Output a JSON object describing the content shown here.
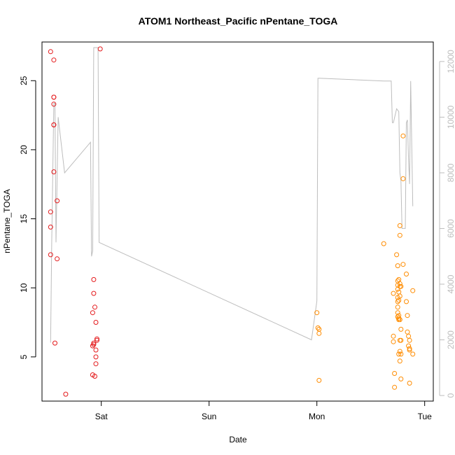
{
  "chart_data": {
    "type": "scatter",
    "title": "ATOM1 Northeast_Pacific nPentane_TOGA",
    "xlabel": "Date",
    "ylabel": "nPentane_TOGA",
    "x_ticks": [
      {
        "label": "Sat",
        "day": 1.0
      },
      {
        "label": "Sun",
        "day": 2.0
      },
      {
        "label": "Mon",
        "day": 3.0
      },
      {
        "label": "Tue",
        "day": 4.0
      }
    ],
    "xlim_days": [
      0.45,
      4.08
    ],
    "ylim": [
      1.8,
      27.8
    ],
    "y_ticks": [
      5,
      10,
      15,
      20,
      25
    ],
    "y2_ticks": [
      0,
      2000,
      4000,
      6000,
      8000,
      10000,
      12000
    ],
    "y2lim": [
      -200,
      12700
    ],
    "grid": false,
    "colors": {
      "series1": "#e41a1c",
      "series2": "#ff8c00",
      "line": "#bdbdbd",
      "axis": "#000000",
      "axis_right": "#bdbdbd"
    },
    "series": [
      {
        "color": "#e41a1c",
        "points": [
          [
            0.53,
            27.1
          ],
          [
            0.53,
            15.5
          ],
          [
            0.53,
            14.4
          ],
          [
            0.53,
            12.4
          ],
          [
            0.56,
            26.5
          ],
          [
            0.56,
            23.8
          ],
          [
            0.56,
            23.8
          ],
          [
            0.56,
            23.3
          ],
          [
            0.56,
            21.8
          ],
          [
            0.56,
            21.8
          ],
          [
            0.56,
            18.4
          ],
          [
            0.57,
            6.0
          ],
          [
            0.59,
            16.3
          ],
          [
            0.59,
            12.1
          ],
          [
            0.67,
            2.3
          ],
          [
            0.92,
            8.2
          ],
          [
            0.92,
            5.8
          ],
          [
            0.92,
            3.7
          ],
          [
            0.93,
            10.6
          ],
          [
            0.93,
            9.6
          ],
          [
            0.93,
            5.9
          ],
          [
            0.93,
            6.0
          ],
          [
            0.94,
            8.6
          ],
          [
            0.94,
            3.6
          ],
          [
            0.95,
            7.5
          ],
          [
            0.95,
            5.5
          ],
          [
            0.95,
            5.0
          ],
          [
            0.95,
            4.5
          ],
          [
            0.96,
            6.3
          ],
          [
            0.96,
            6.2
          ],
          [
            0.99,
            27.3
          ]
        ]
      },
      {
        "color": "#ff8c00",
        "points": [
          [
            3.0,
            8.2
          ],
          [
            3.01,
            7.1
          ],
          [
            3.02,
            7.0
          ],
          [
            3.02,
            6.7
          ],
          [
            3.02,
            3.3
          ],
          [
            3.62,
            13.2
          ],
          [
            3.71,
            9.6
          ],
          [
            3.71,
            6.5
          ],
          [
            3.71,
            6.1
          ],
          [
            3.72,
            3.8
          ],
          [
            3.72,
            2.8
          ],
          [
            3.74,
            12.4
          ],
          [
            3.75,
            11.6
          ],
          [
            3.75,
            10.5
          ],
          [
            3.75,
            10.2
          ],
          [
            3.75,
            9.9
          ],
          [
            3.75,
            9.3
          ],
          [
            3.75,
            9.0
          ],
          [
            3.75,
            8.6
          ],
          [
            3.75,
            8.2
          ],
          [
            3.75,
            7.9
          ],
          [
            3.76,
            10.6
          ],
          [
            3.76,
            9.7
          ],
          [
            3.76,
            9.1
          ],
          [
            3.76,
            8.0
          ],
          [
            3.76,
            7.8
          ],
          [
            3.76,
            7.7
          ],
          [
            3.76,
            5.2
          ],
          [
            3.77,
            14.5
          ],
          [
            3.77,
            13.8
          ],
          [
            3.77,
            10.3
          ],
          [
            3.77,
            10.1
          ],
          [
            3.77,
            9.4
          ],
          [
            3.77,
            7.7
          ],
          [
            3.77,
            6.2
          ],
          [
            3.77,
            5.4
          ],
          [
            3.77,
            4.7
          ],
          [
            3.78,
            10.1
          ],
          [
            3.78,
            7.0
          ],
          [
            3.78,
            6.2
          ],
          [
            3.78,
            5.2
          ],
          [
            3.78,
            3.4
          ],
          [
            3.8,
            21.0
          ],
          [
            3.8,
            17.9
          ],
          [
            3.8,
            11.7
          ],
          [
            3.83,
            11.0
          ],
          [
            3.83,
            9.0
          ],
          [
            3.84,
            8.0
          ],
          [
            3.84,
            6.8
          ],
          [
            3.85,
            6.5
          ],
          [
            3.85,
            5.8
          ],
          [
            3.86,
            5.6
          ],
          [
            3.86,
            5.5
          ],
          [
            3.86,
            6.2
          ],
          [
            3.86,
            3.1
          ],
          [
            3.89,
            9.8
          ],
          [
            3.89,
            5.2
          ]
        ]
      }
    ],
    "line_series": {
      "axis": "right",
      "color": "#bdbdbd",
      "points": [
        [
          0.53,
          1900
        ],
        [
          0.54,
          5500
        ],
        [
          0.56,
          10500
        ],
        [
          0.57,
          10500
        ],
        [
          0.58,
          5500
        ],
        [
          0.6,
          10000
        ],
        [
          0.66,
          8000
        ],
        [
          0.9,
          9100
        ],
        [
          0.91,
          5000
        ],
        [
          0.92,
          5200
        ],
        [
          0.93,
          12500
        ],
        [
          0.95,
          12500
        ],
        [
          0.97,
          12500
        ],
        [
          0.98,
          5500
        ],
        [
          2.95,
          2000
        ],
        [
          3.0,
          3400
        ],
        [
          3.01,
          11400
        ],
        [
          3.02,
          11400
        ],
        [
          3.62,
          11300
        ],
        [
          3.69,
          11300
        ],
        [
          3.7,
          9800
        ],
        [
          3.71,
          9800
        ],
        [
          3.74,
          10300
        ],
        [
          3.76,
          10200
        ],
        [
          3.77,
          8000
        ],
        [
          3.78,
          7700
        ],
        [
          3.79,
          6000
        ],
        [
          3.8,
          6000
        ],
        [
          3.81,
          6000
        ],
        [
          3.82,
          6000
        ],
        [
          3.83,
          9800
        ],
        [
          3.84,
          9900
        ],
        [
          3.85,
          8500
        ],
        [
          3.86,
          7600
        ],
        [
          3.87,
          11300
        ],
        [
          3.88,
          9000
        ],
        [
          3.89,
          6800
        ]
      ]
    }
  }
}
